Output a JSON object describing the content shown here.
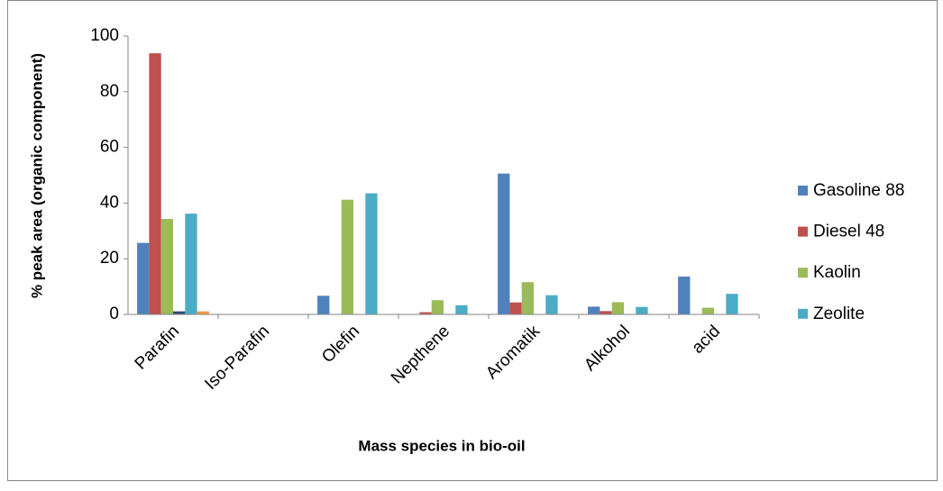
{
  "chart_data": {
    "type": "bar",
    "y_label": "% peak area (organic component)",
    "x_label": "Mass species in bio-oil",
    "categories": [
      "Parafin",
      "Iso-Parafin",
      "Olefin",
      "Nepthene",
      "Aromatik",
      "Alkohol",
      "acid"
    ],
    "series": [
      {
        "name": "Gasoline 88",
        "color": "#4f81bd",
        "values": [
          25.7,
          0,
          6.7,
          0,
          50.6,
          2.8,
          13.6
        ]
      },
      {
        "name": "Diesel 48",
        "color": "#c0504d",
        "values": [
          93.8,
          0,
          0,
          0.8,
          4.3,
          1.2,
          0
        ]
      },
      {
        "name": "Kaolin",
        "color": "#9bbb59",
        "values": [
          34.3,
          0,
          41.2,
          5.1,
          11.6,
          4.4,
          2.4
        ]
      },
      {
        "name": null,
        "color": "#2c4d75",
        "values": [
          1.1,
          0,
          0,
          0,
          0,
          0,
          0
        ]
      },
      {
        "name": "Zeolite",
        "color": "#4bacc6",
        "values": [
          36.2,
          0,
          43.5,
          3.3,
          6.9,
          2.7,
          7.4
        ]
      },
      {
        "name": null,
        "color": "#f79646",
        "values": [
          1.1,
          0,
          0,
          0,
          0,
          0,
          0
        ]
      }
    ],
    "ylim": [
      0,
      100
    ],
    "yticks": [
      0,
      20,
      40,
      60,
      80,
      100
    ],
    "grid": false,
    "legend": "right"
  }
}
